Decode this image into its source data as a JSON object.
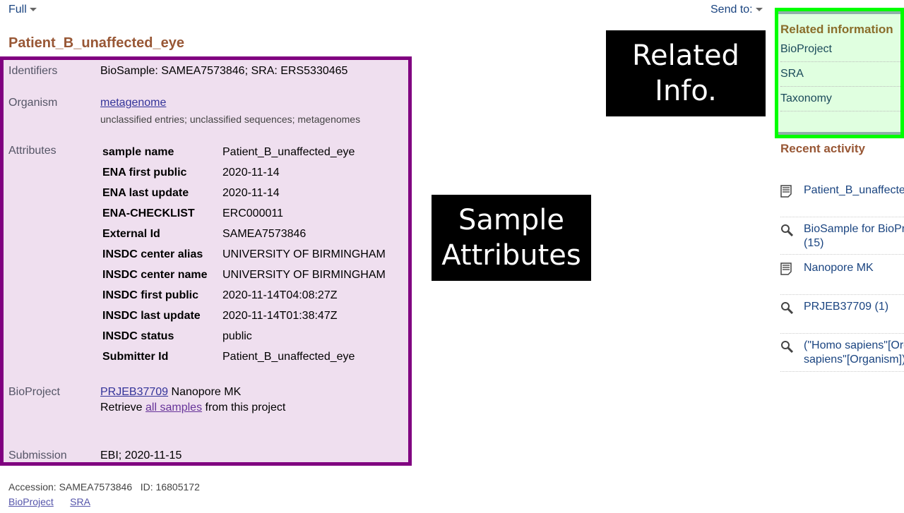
{
  "top": {
    "format_label": "Full",
    "send_to_label": "Send to:"
  },
  "title": "Patient_B_unaffected_eye",
  "record": {
    "identifiers_label": "Identifiers",
    "identifiers_value": "BioSample: SAMEA7573846; SRA: ERS5330465",
    "organism_label": "Organism",
    "organism_link": "metagenome",
    "organism_lineage": "unclassified entries; unclassified sequences; metagenomes",
    "attributes_label": "Attributes",
    "attributes": [
      {
        "key": "sample name",
        "value": "Patient_B_unaffected_eye"
      },
      {
        "key": "ENA first public",
        "value": "2020-11-14"
      },
      {
        "key": "ENA last update",
        "value": "2020-11-14"
      },
      {
        "key": "ENA-CHECKLIST",
        "value": "ERC000011"
      },
      {
        "key": "External Id",
        "value": "SAMEA7573846"
      },
      {
        "key": "INSDC center alias",
        "value": "UNIVERSITY OF BIRMINGHAM"
      },
      {
        "key": "INSDC center name",
        "value": "UNIVERSITY OF BIRMINGHAM"
      },
      {
        "key": "INSDC first public",
        "value": "2020-11-14T04:08:27Z"
      },
      {
        "key": "INSDC last update",
        "value": "2020-11-14T01:38:47Z"
      },
      {
        "key": "INSDC status",
        "value": "public"
      },
      {
        "key": "Submitter Id",
        "value": "Patient_B_unaffected_eye"
      }
    ],
    "bioproject_label": "BioProject",
    "bioproject_link": "PRJEB37709",
    "bioproject_name": "Nanopore MK",
    "retrieve_prefix": "Retrieve",
    "retrieve_link": "all samples",
    "retrieve_suffix": "from this project",
    "submission_label": "Submission",
    "submission_value": "EBI; 2020-11-15"
  },
  "footer": {
    "accession": "Accession: SAMEA7573846",
    "id": "ID: 16805172",
    "links": [
      "BioProject",
      "SRA"
    ]
  },
  "annotations": {
    "sample_attributes": "Sample Attributes",
    "related_info": "Related Info."
  },
  "related": {
    "title": "Related information",
    "items": [
      "BioProject",
      "SRA",
      "Taxonomy"
    ]
  },
  "recent": {
    "title": "Recent activity",
    "items": [
      {
        "icon": "document-icon",
        "text": "Patient_B_unaffected_eye"
      },
      {
        "icon": "search-icon",
        "text": "BioSample for BioProject",
        "text2": "(15)"
      },
      {
        "icon": "document-icon",
        "text": "Nanopore MK"
      },
      {
        "icon": "search-icon",
        "text": "PRJEB37709 (1)"
      },
      {
        "icon": "search-icon",
        "text": "(\"Homo sapiens\"[Organism] OR",
        "text2": "sapiens\"[Organism])"
      }
    ]
  },
  "colors": {
    "annotation_purple": "#800080",
    "annotation_green": "#00ff00",
    "title_brown": "#985735"
  }
}
